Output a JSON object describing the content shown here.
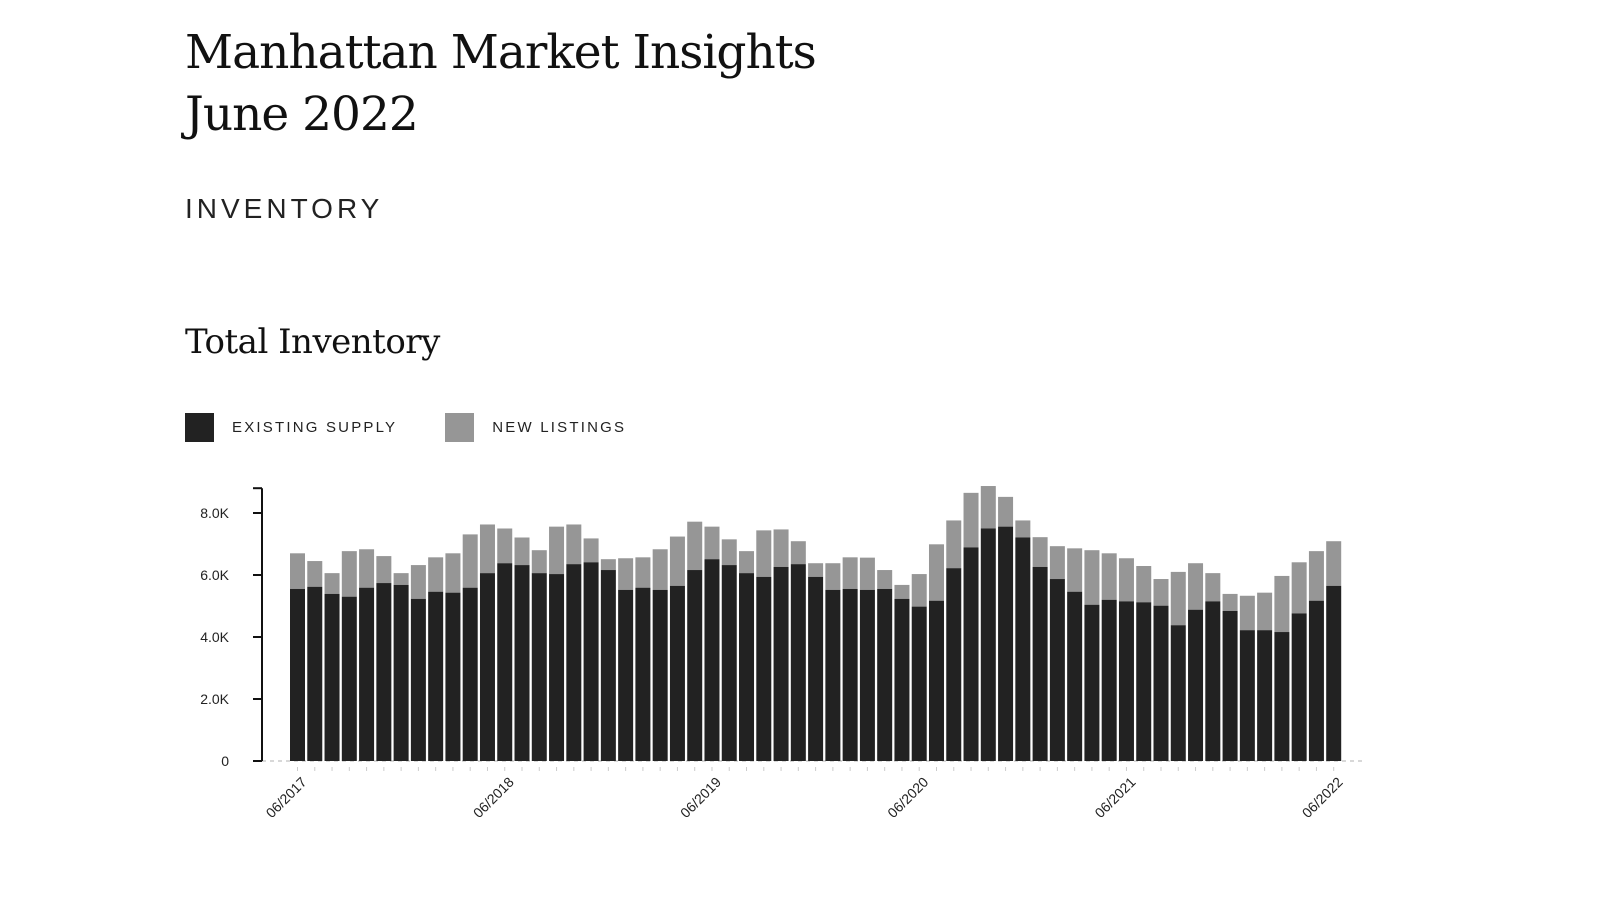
{
  "header": {
    "title_line1": "Manhattan Market Insights",
    "title_line2": "June 2022"
  },
  "section": {
    "label": "INVENTORY"
  },
  "chart_data": {
    "type": "bar",
    "stacked": true,
    "title": "Total Inventory",
    "xlabel": "",
    "ylabel": "",
    "ylim": [
      0,
      8800
    ],
    "yticks": [
      0,
      2000,
      4000,
      6000,
      8000
    ],
    "ytick_labels": [
      "0",
      "2.0K",
      "4.0K",
      "6.0K",
      "8.0K"
    ],
    "xtick_labels": [
      "06/2017",
      "06/2018",
      "06/2019",
      "06/2020",
      "06/2021",
      "06/2022"
    ],
    "xtick_index": [
      0,
      12,
      24,
      36,
      48,
      60
    ],
    "legend": {
      "placement": "top-left",
      "entries": [
        "EXISTING SUPPLY",
        "NEW LISTINGS"
      ]
    },
    "colors": {
      "existing": "#222222",
      "new": "#969696"
    },
    "categories": [
      "06/2017",
      "07/2017",
      "08/2017",
      "09/2017",
      "10/2017",
      "11/2017",
      "12/2017",
      "01/2018",
      "02/2018",
      "03/2018",
      "04/2018",
      "05/2018",
      "06/2018",
      "07/2018",
      "08/2018",
      "09/2018",
      "10/2018",
      "11/2018",
      "12/2018",
      "01/2019",
      "02/2019",
      "03/2019",
      "04/2019",
      "05/2019",
      "06/2019",
      "07/2019",
      "08/2019",
      "09/2019",
      "10/2019",
      "11/2019",
      "12/2019",
      "01/2020",
      "02/2020",
      "03/2020",
      "04/2020",
      "05/2020",
      "06/2020",
      "07/2020",
      "08/2020",
      "09/2020",
      "10/2020",
      "11/2020",
      "12/2020",
      "01/2021",
      "02/2021",
      "03/2021",
      "04/2021",
      "05/2021",
      "06/2021",
      "07/2021",
      "08/2021",
      "09/2021",
      "10/2021",
      "11/2021",
      "12/2021",
      "01/2022",
      "02/2022",
      "03/2022",
      "04/2022",
      "05/2022",
      "06/2022"
    ],
    "series": [
      {
        "name": "Existing Supply",
        "values": [
          5550,
          5620,
          5390,
          5300,
          5590,
          5740,
          5680,
          5230,
          5460,
          5430,
          5590,
          6060,
          6380,
          6320,
          6060,
          6030,
          6350,
          6410,
          6160,
          5520,
          5590,
          5520,
          5650,
          6160,
          6510,
          6320,
          6060,
          5940,
          6260,
          6350,
          5940,
          5520,
          5550,
          5520,
          5550,
          5230,
          4980,
          5170,
          6220,
          6890,
          7500,
          7560,
          7210,
          6260,
          5870,
          5460,
          5040,
          5200,
          5150,
          5120,
          5010,
          4380,
          4880,
          5150,
          4840,
          4220,
          4220,
          4160,
          4760,
          5170,
          5650
        ]
      },
      {
        "name": "New Listings",
        "values": [
          1150,
          830,
          670,
          1470,
          1240,
          870,
          380,
          1090,
          1110,
          1270,
          1720,
          1570,
          1120,
          890,
          740,
          1530,
          1280,
          770,
          350,
          1020,
          980,
          1310,
          1590,
          1560,
          1050,
          830,
          710,
          1500,
          1210,
          740,
          440,
          860,
          1020,
          1040,
          610,
          450,
          1050,
          1820,
          1540,
          1760,
          1370,
          960,
          550,
          960,
          1060,
          1400,
          1760,
          1500,
          1390,
          1170,
          860,
          1720,
          1500,
          910,
          550,
          1110,
          1210,
          1810,
          1650,
          1600,
          1440
        ]
      }
    ]
  }
}
